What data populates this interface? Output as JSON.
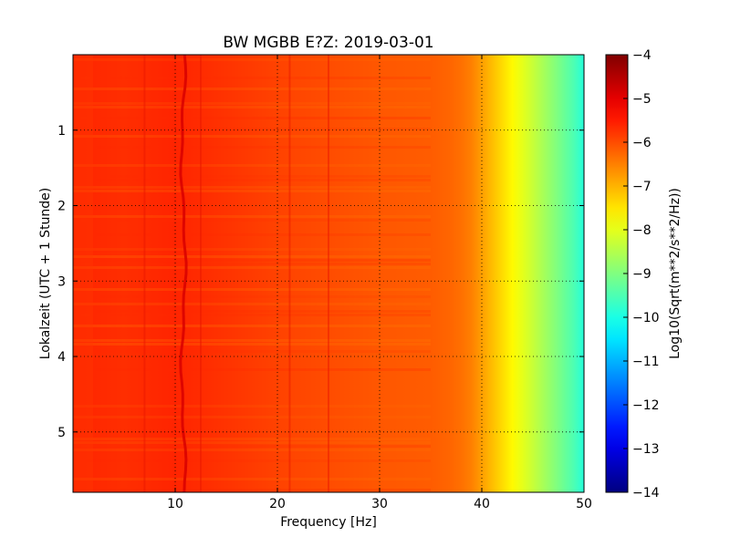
{
  "chart_data": {
    "type": "heatmap",
    "title": "BW MGBB E?Z: 2019-03-01",
    "xlabel": "Frequency [Hz]",
    "ylabel": "Lokalzeit (UTC + 1 Stunde)",
    "xlim": [
      0,
      50
    ],
    "ylim": [
      0,
      5.8
    ],
    "y_inverted": true,
    "grid": true,
    "x_ticks": [
      10,
      20,
      30,
      40,
      50
    ],
    "y_ticks": [
      1,
      2,
      3,
      4,
      5
    ],
    "colormap": "jet",
    "colorbar": {
      "label": "Log10(Sqrt(m**2/s**2/Hz))",
      "range": [
        -14,
        -4
      ],
      "ticks": [
        -4,
        -5,
        -6,
        -7,
        -8,
        -9,
        -10,
        -11,
        -12,
        -13,
        -14
      ]
    },
    "frequency_profile": {
      "frequency_hz": [
        0,
        5,
        10,
        15,
        20,
        25,
        30,
        35,
        37,
        38,
        39,
        40,
        41,
        42,
        43,
        44,
        45,
        46,
        47,
        48,
        49,
        50
      ],
      "log10_amplitude": [
        -5.6,
        -5.7,
        -5.6,
        -5.75,
        -5.9,
        -6.0,
        -6.1,
        -6.15,
        -6.25,
        -6.35,
        -6.5,
        -6.8,
        -7.1,
        -7.4,
        -7.7,
        -8.0,
        -8.3,
        -8.6,
        -8.9,
        -9.2,
        -9.5,
        -9.9
      ]
    },
    "features": [
      {
        "type": "vertical_line",
        "frequency_hz": 10.8,
        "description": "wandering red line"
      },
      {
        "type": "vertical_line",
        "frequency_hz": 21.2
      },
      {
        "type": "vertical_line",
        "frequency_hz": 25.0
      },
      {
        "type": "vertical_line",
        "frequency_hz": 7.0
      },
      {
        "type": "vertical_line",
        "frequency_hz": 12.5
      }
    ]
  }
}
